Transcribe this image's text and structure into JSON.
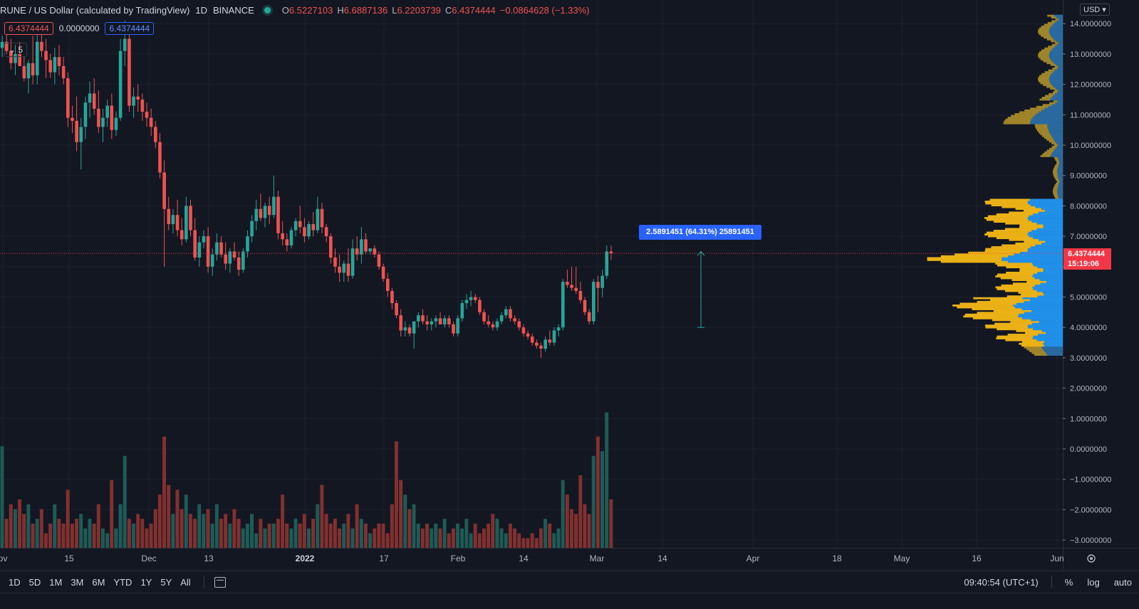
{
  "legend": {
    "symbol": "RUNE / US Dollar (calculated by TradingView)",
    "timeframe": "1D",
    "exchange": "BINANCE",
    "open_label": "O",
    "open": "6.5227103",
    "high_label": "H",
    "high": "6.6887136",
    "low_label": "L",
    "low": "6.2203739",
    "close_label": "C",
    "close": "6.4374444",
    "change": "−0.0864628 (−1.33%)",
    "pill_left": "6.4374444",
    "pill_mid": "0.0000000",
    "pill_right": "6.4374444",
    "collapse_count": "5"
  },
  "currency_button": "USD",
  "last_price": {
    "value": "6.4374444",
    "countdown": "15:19:06",
    "color": "#f23645"
  },
  "measure_label": "2.5891451 (64.31%) 25891451",
  "timeframes": [
    "1D",
    "5D",
    "1M",
    "3M",
    "6M",
    "YTD",
    "1Y",
    "5Y",
    "All"
  ],
  "clock": "09:40:54 (UTC+1)",
  "right_tools": {
    "percent": "%",
    "log": "log",
    "auto": "auto"
  },
  "colors": {
    "up": "#26a69a",
    "down": "#ef5350",
    "up_volume": "#1e5b56",
    "down_volume": "#82302f",
    "profile_yellow": "#f5b916",
    "profile_blue": "#2196f3",
    "background": "#131722"
  },
  "chart_data": {
    "type": "candlestick",
    "y_axis": {
      "range": [
        -3.25,
        14.35
      ],
      "ticks": [
        "14.0000000",
        "13.0000000",
        "12.0000000",
        "11.0000000",
        "10.0000000",
        "9.0000000",
        "8.0000000",
        "7.0000000",
        "6.0000000",
        "5.0000000",
        "4.0000000",
        "3.0000000",
        "2.0000000",
        "1.0000000",
        "0.0000000",
        "−1.0000000",
        "−2.0000000",
        "−3.0000000"
      ]
    },
    "x_axis": {
      "ticks": [
        "ov",
        "15",
        "Dec",
        "13",
        "2022",
        "17",
        "Feb",
        "14",
        "Mar",
        "14",
        "Apr",
        "18",
        "May",
        "16",
        "Jun"
      ]
    },
    "candles_ohlc": [
      [
        13.2,
        13.6,
        12.9,
        13.4
      ],
      [
        13.4,
        13.9,
        13.0,
        13.1
      ],
      [
        13.1,
        13.5,
        12.5,
        12.7
      ],
      [
        12.7,
        13.3,
        12.3,
        13.0
      ],
      [
        13.0,
        13.4,
        12.6,
        12.6
      ],
      [
        12.6,
        12.9,
        12.1,
        12.2
      ],
      [
        12.2,
        12.8,
        11.7,
        12.7
      ],
      [
        12.7,
        13.6,
        12.0,
        12.3
      ],
      [
        12.3,
        13.8,
        12.0,
        13.4
      ],
      [
        13.4,
        14.0,
        12.9,
        13.1
      ],
      [
        13.1,
        13.5,
        12.2,
        12.8
      ],
      [
        12.8,
        13.0,
        12.2,
        12.4
      ],
      [
        12.4,
        13.2,
        12.0,
        12.9
      ],
      [
        12.9,
        13.3,
        12.3,
        12.6
      ],
      [
        12.6,
        12.9,
        12.0,
        12.2
      ],
      [
        12.2,
        12.4,
        10.6,
        10.9
      ],
      [
        10.9,
        11.3,
        10.4,
        10.8
      ],
      [
        10.8,
        11.6,
        9.8,
        10.1
      ],
      [
        10.1,
        10.9,
        9.2,
        10.6
      ],
      [
        10.6,
        11.6,
        10.2,
        11.4
      ],
      [
        11.4,
        12.1,
        10.9,
        11.7
      ],
      [
        11.7,
        12.2,
        11.0,
        11.2
      ],
      [
        11.2,
        11.8,
        10.4,
        10.6
      ],
      [
        10.6,
        11.2,
        10.1,
        10.9
      ],
      [
        10.9,
        11.5,
        10.6,
        11.3
      ],
      [
        11.3,
        11.7,
        10.2,
        10.5
      ],
      [
        10.5,
        11.1,
        10.3,
        10.9
      ],
      [
        10.9,
        13.5,
        10.8,
        13.1
      ],
      [
        13.1,
        14.1,
        12.6,
        13.5
      ],
      [
        13.5,
        13.8,
        11.1,
        11.3
      ],
      [
        11.3,
        11.9,
        10.9,
        11.6
      ],
      [
        11.6,
        12.0,
        11.1,
        11.5
      ],
      [
        11.5,
        11.7,
        10.8,
        11.1
      ],
      [
        11.1,
        11.4,
        10.6,
        10.9
      ],
      [
        10.9,
        11.2,
        10.3,
        10.6
      ],
      [
        10.6,
        10.8,
        9.9,
        10.1
      ],
      [
        10.1,
        10.4,
        8.9,
        9.1
      ],
      [
        9.1,
        9.5,
        6.0,
        7.9
      ],
      [
        7.9,
        8.3,
        7.2,
        7.4
      ],
      [
        7.4,
        7.9,
        7.1,
        7.7
      ],
      [
        7.7,
        8.2,
        7.0,
        7.2
      ],
      [
        7.2,
        7.6,
        6.7,
        6.9
      ],
      [
        6.9,
        8.3,
        6.8,
        8.0
      ],
      [
        8.0,
        8.2,
        7.0,
        7.2
      ],
      [
        7.2,
        7.6,
        6.2,
        6.3
      ],
      [
        6.3,
        7.0,
        6.0,
        6.8
      ],
      [
        6.8,
        7.2,
        6.6,
        7.0
      ],
      [
        7.0,
        7.3,
        5.8,
        6.0
      ],
      [
        6.0,
        6.6,
        5.7,
        6.4
      ],
      [
        6.4,
        7.1,
        6.2,
        6.8
      ],
      [
        6.8,
        7.0,
        6.3,
        6.4
      ],
      [
        6.4,
        6.8,
        5.9,
        6.1
      ],
      [
        6.1,
        6.6,
        5.8,
        6.5
      ],
      [
        6.5,
        6.8,
        6.2,
        6.3
      ],
      [
        6.3,
        6.5,
        5.7,
        5.9
      ],
      [
        5.9,
        6.6,
        5.8,
        6.5
      ],
      [
        6.5,
        7.2,
        6.3,
        7.0
      ],
      [
        7.0,
        7.7,
        6.8,
        7.5
      ],
      [
        7.5,
        8.2,
        7.2,
        7.9
      ],
      [
        7.9,
        8.4,
        7.5,
        7.6
      ],
      [
        7.6,
        8.1,
        7.3,
        8.0
      ],
      [
        8.0,
        8.3,
        7.4,
        7.7
      ],
      [
        7.7,
        9.0,
        7.6,
        8.3
      ],
      [
        8.3,
        8.5,
        6.9,
        7.1
      ],
      [
        7.1,
        7.5,
        6.7,
        6.9
      ],
      [
        6.9,
        7.1,
        6.5,
        6.7
      ],
      [
        6.7,
        7.3,
        6.6,
        7.2
      ],
      [
        7.2,
        7.6,
        7.0,
        7.5
      ],
      [
        7.5,
        8.0,
        7.1,
        7.3
      ],
      [
        7.3,
        7.6,
        6.8,
        7.0
      ],
      [
        7.0,
        7.5,
        6.9,
        7.4
      ],
      [
        7.4,
        7.8,
        7.0,
        7.2
      ],
      [
        7.2,
        8.3,
        7.1,
        7.9
      ],
      [
        7.9,
        8.1,
        7.1,
        7.3
      ],
      [
        7.3,
        7.4,
        6.8,
        7.0
      ],
      [
        7.0,
        7.1,
        6.1,
        6.3
      ],
      [
        6.3,
        6.6,
        5.8,
        6.0
      ],
      [
        6.0,
        6.4,
        5.5,
        5.8
      ],
      [
        5.8,
        6.2,
        5.5,
        6.1
      ],
      [
        6.1,
        6.6,
        5.5,
        5.7
      ],
      [
        5.7,
        6.9,
        5.6,
        6.6
      ],
      [
        6.6,
        7.0,
        6.2,
        6.4
      ],
      [
        6.4,
        7.3,
        6.1,
        6.9
      ],
      [
        6.9,
        7.1,
        6.4,
        6.5
      ],
      [
        6.5,
        6.6,
        6.4,
        6.6
      ],
      [
        6.6,
        6.7,
        6.3,
        6.4
      ],
      [
        6.4,
        6.5,
        5.9,
        6.0
      ],
      [
        6.0,
        6.1,
        5.5,
        5.6
      ],
      [
        5.6,
        5.8,
        5.0,
        5.2
      ],
      [
        5.2,
        5.3,
        4.6,
        4.8
      ],
      [
        4.8,
        4.9,
        4.3,
        4.4
      ],
      [
        4.4,
        4.6,
        3.7,
        3.9
      ],
      [
        3.9,
        4.2,
        3.7,
        4.0
      ],
      [
        4.0,
        4.1,
        3.7,
        3.8
      ],
      [
        3.8,
        4.2,
        3.3,
        4.2
      ],
      [
        4.2,
        4.5,
        4.0,
        4.4
      ],
      [
        4.4,
        4.6,
        4.1,
        4.2
      ],
      [
        4.2,
        4.4,
        3.9,
        4.1
      ],
      [
        4.1,
        4.3,
        3.9,
        4.2
      ],
      [
        4.2,
        4.4,
        4.0,
        4.3
      ],
      [
        4.3,
        4.5,
        4.1,
        4.1
      ],
      [
        4.1,
        4.4,
        4.0,
        4.3
      ],
      [
        4.3,
        4.4,
        4.0,
        4.1
      ],
      [
        4.1,
        4.2,
        3.7,
        3.8
      ],
      [
        3.8,
        4.4,
        3.7,
        4.3
      ],
      [
        4.3,
        4.9,
        4.2,
        4.8
      ],
      [
        4.8,
        5.1,
        4.6,
        4.9
      ],
      [
        4.9,
        5.2,
        4.7,
        5.0
      ],
      [
        5.0,
        5.1,
        4.8,
        4.9
      ],
      [
        4.9,
        5.0,
        4.4,
        4.5
      ],
      [
        4.5,
        4.6,
        4.1,
        4.2
      ],
      [
        4.2,
        4.4,
        4.0,
        4.1
      ],
      [
        4.1,
        4.2,
        3.9,
        4.0
      ],
      [
        4.0,
        4.3,
        3.9,
        4.2
      ],
      [
        4.2,
        4.5,
        4.1,
        4.4
      ],
      [
        4.4,
        4.7,
        4.3,
        4.6
      ],
      [
        4.6,
        4.7,
        4.2,
        4.3
      ],
      [
        4.3,
        4.4,
        4.1,
        4.2
      ],
      [
        4.2,
        4.3,
        3.9,
        4.0
      ],
      [
        4.0,
        4.1,
        3.7,
        3.8
      ],
      [
        3.8,
        3.9,
        3.6,
        3.7
      ],
      [
        3.7,
        3.8,
        3.4,
        3.5
      ],
      [
        3.5,
        3.6,
        3.3,
        3.4
      ],
      [
        3.4,
        3.5,
        3.0,
        3.3
      ],
      [
        3.3,
        3.7,
        3.2,
        3.6
      ],
      [
        3.6,
        3.9,
        3.4,
        3.5
      ],
      [
        3.5,
        4.0,
        3.4,
        3.9
      ],
      [
        3.9,
        4.1,
        3.7,
        4.0
      ],
      [
        4.0,
        5.6,
        3.9,
        5.5
      ],
      [
        5.5,
        5.9,
        5.3,
        5.4
      ],
      [
        5.4,
        6.0,
        5.2,
        5.3
      ],
      [
        5.3,
        6.0,
        5.1,
        5.2
      ],
      [
        5.2,
        5.5,
        4.8,
        4.9
      ],
      [
        4.9,
        5.0,
        4.4,
        4.5
      ],
      [
        4.5,
        4.6,
        4.1,
        4.2
      ],
      [
        4.2,
        5.6,
        4.1,
        5.5
      ],
      [
        5.5,
        5.7,
        4.5,
        5.3
      ],
      [
        5.3,
        5.9,
        5.0,
        5.7
      ],
      [
        5.7,
        6.7,
        5.6,
        6.5
      ],
      [
        6.5,
        6.69,
        6.22,
        6.44
      ]
    ],
    "volumes": [
      2.1,
      0.6,
      0.9,
      0.8,
      1.0,
      0.7,
      0.9,
      0.5,
      0.6,
      0.8,
      0.3,
      0.5,
      0.9,
      0.6,
      0.5,
      1.2,
      0.5,
      0.6,
      0.7,
      0.4,
      0.6,
      0.5,
      0.9,
      0.4,
      0.3,
      1.4,
      0.4,
      0.9,
      1.9,
      0.6,
      0.5,
      0.7,
      0.6,
      0.4,
      0.5,
      0.8,
      1.1,
      2.3,
      1.3,
      0.7,
      1.2,
      0.8,
      1.1,
      0.7,
      0.6,
      0.9,
      0.7,
      0.8,
      0.5,
      0.9,
      0.6,
      0.7,
      0.5,
      0.8,
      0.6,
      0.4,
      0.5,
      0.7,
      0.3,
      0.6,
      0.4,
      0.5,
      0.5,
      0.6,
      1.1,
      0.5,
      0.4,
      0.6,
      0.5,
      0.7,
      0.4,
      0.6,
      0.9,
      1.3,
      0.7,
      0.5,
      0.6,
      0.4,
      0.5,
      0.7,
      0.4,
      0.9,
      0.6,
      0.5,
      0.3,
      0.4,
      0.5,
      0.5,
      0.3,
      0.9,
      2.2,
      1.4,
      1.1,
      0.8,
      0.9,
      0.5,
      0.4,
      0.5,
      0.4,
      0.5,
      0.4,
      0.6,
      0.3,
      0.4,
      0.5,
      0.4,
      0.6,
      0.3,
      0.5,
      0.3,
      0.4,
      0.5,
      0.7,
      0.6,
      0.4,
      0.3,
      0.5,
      0.4,
      0.3,
      0.2,
      0.2,
      0.3,
      0.2,
      0.4,
      0.6,
      0.5,
      0.3,
      0.4,
      1.4,
      1.1,
      0.8,
      0.7,
      1.5,
      0.9,
      0.7,
      1.9,
      2.3,
      2.0,
      2.8,
      1.0
    ]
  }
}
